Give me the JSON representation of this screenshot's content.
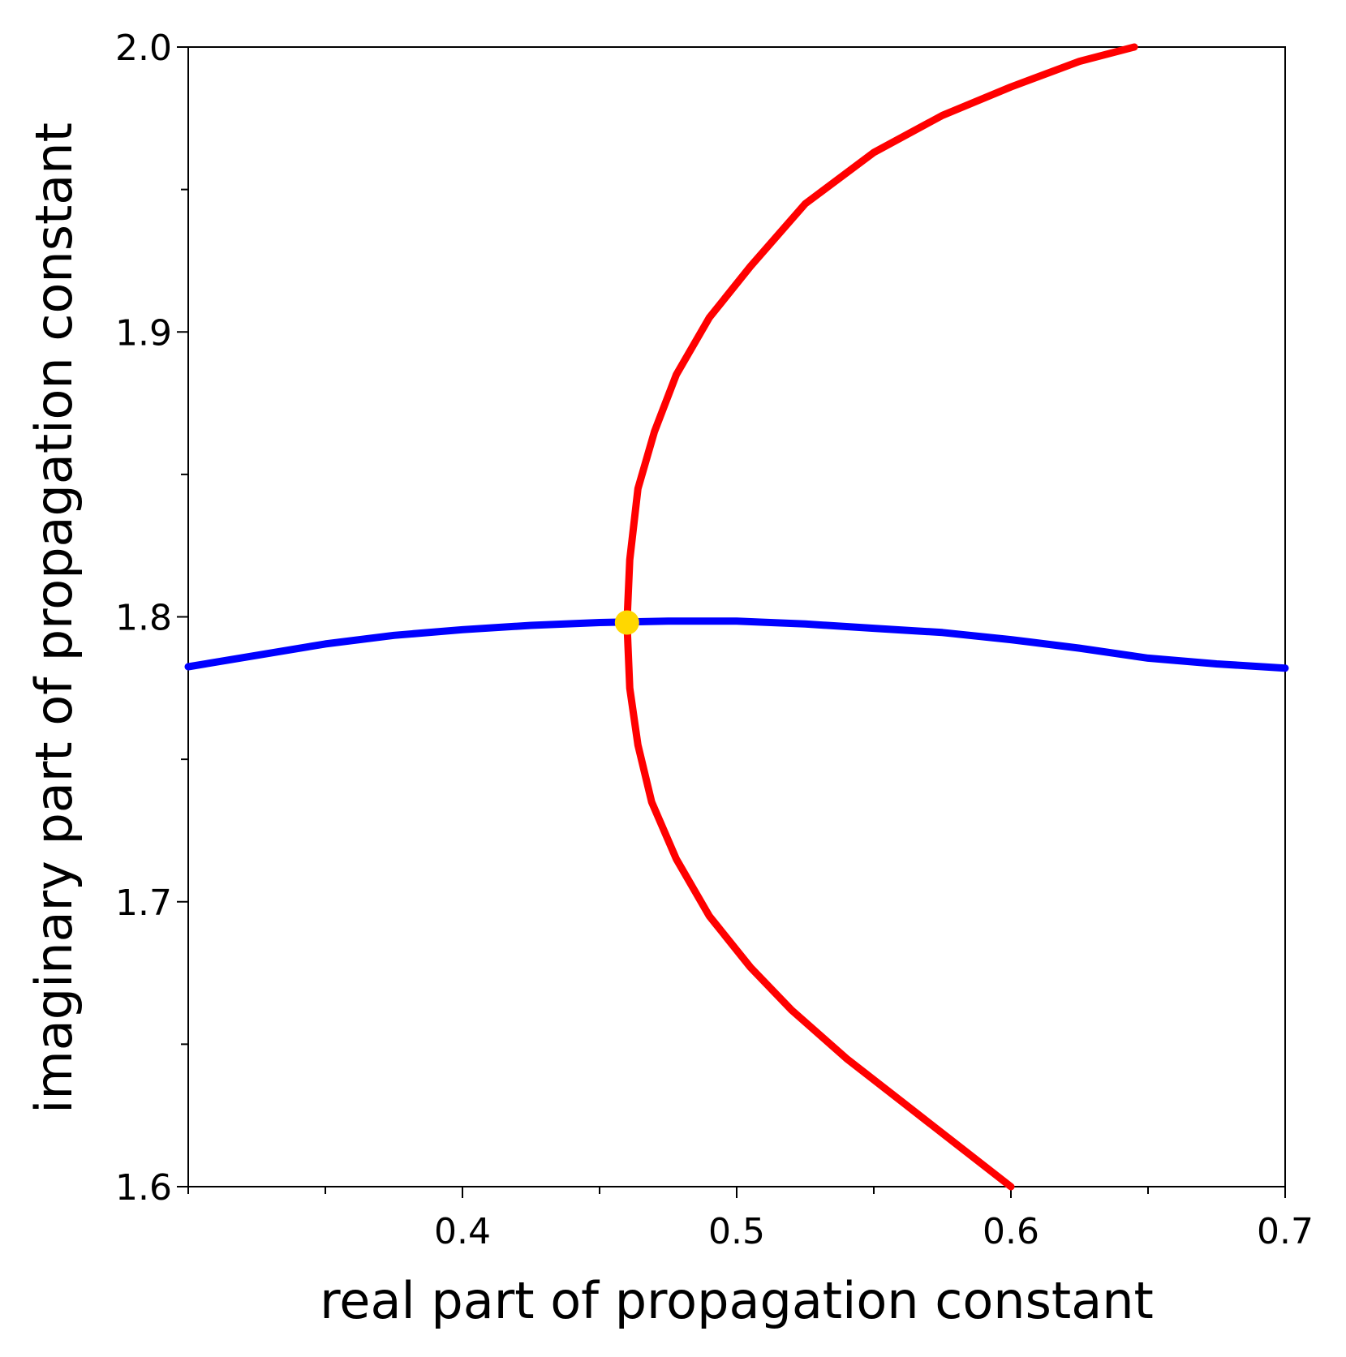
{
  "chart_data": {
    "type": "line",
    "title": "",
    "xlabel": "real part of propagation constant",
    "ylabel": "imaginary part of propagation constant",
    "xlim": [
      0.3,
      0.7
    ],
    "ylim": [
      1.6,
      2.0
    ],
    "x_ticks": [
      0.4,
      0.5,
      0.6,
      0.7
    ],
    "x_tick_labels": [
      "0.4",
      "0.5",
      "0.6",
      "0.7"
    ],
    "x_minor_ticks": [
      0.3,
      0.35,
      0.45,
      0.55,
      0.65
    ],
    "y_ticks": [
      1.6,
      1.7,
      1.8,
      1.9,
      2.0
    ],
    "y_tick_labels": [
      "1.6",
      "1.7",
      "1.8",
      "1.9",
      "2.0"
    ],
    "y_minor_ticks": [
      1.65,
      1.75,
      1.85,
      1.95
    ],
    "grid": false,
    "series": [
      {
        "color": "#0000ff",
        "points": [
          [
            0.3,
            1.7825
          ],
          [
            0.325,
            1.7865
          ],
          [
            0.35,
            1.7905
          ],
          [
            0.375,
            1.7935
          ],
          [
            0.4,
            1.7955
          ],
          [
            0.425,
            1.797
          ],
          [
            0.45,
            1.798
          ],
          [
            0.475,
            1.7985
          ],
          [
            0.5,
            1.7985
          ],
          [
            0.525,
            1.7975
          ],
          [
            0.55,
            1.796
          ],
          [
            0.575,
            1.7945
          ],
          [
            0.6,
            1.792
          ],
          [
            0.625,
            1.789
          ],
          [
            0.65,
            1.7855
          ],
          [
            0.675,
            1.7835
          ],
          [
            0.7,
            1.782
          ]
        ]
      },
      {
        "color": "#ff0000",
        "points": [
          [
            0.6,
            1.6
          ],
          [
            0.58,
            1.615
          ],
          [
            0.56,
            1.63
          ],
          [
            0.54,
            1.645
          ],
          [
            0.52,
            1.662
          ],
          [
            0.505,
            1.677
          ],
          [
            0.49,
            1.695
          ],
          [
            0.478,
            1.715
          ],
          [
            0.469,
            1.735
          ],
          [
            0.464,
            1.755
          ],
          [
            0.461,
            1.775
          ],
          [
            0.46,
            1.798
          ],
          [
            0.461,
            1.82
          ],
          [
            0.464,
            1.845
          ],
          [
            0.47,
            1.865
          ],
          [
            0.478,
            1.885
          ],
          [
            0.49,
            1.905
          ],
          [
            0.505,
            1.923
          ],
          [
            0.525,
            1.945
          ],
          [
            0.55,
            1.963
          ],
          [
            0.575,
            1.976
          ],
          [
            0.6,
            1.986
          ],
          [
            0.625,
            1.995
          ],
          [
            0.645,
            2.0
          ]
        ]
      }
    ],
    "markers": [
      {
        "x": 0.46,
        "y": 1.798,
        "color": "#ffd700"
      }
    ]
  }
}
